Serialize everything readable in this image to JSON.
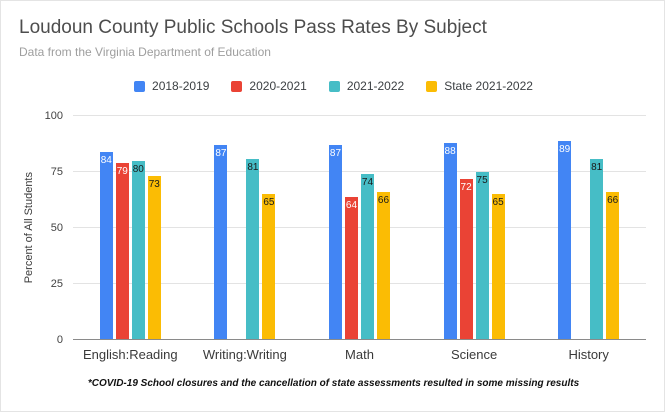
{
  "chart_data": {
    "type": "bar",
    "title": "Loudoun County Public Schools Pass Rates By Subject",
    "subtitle": "Data from the Virginia Department of Education",
    "ylabel": "Percent of All Students",
    "footnote": "*COVID-19 School closures and the cancellation of state assessments resulted in some missing results",
    "categories": [
      "English:Reading",
      "Writing:Writing",
      "Math",
      "Science",
      "History"
    ],
    "series": [
      {
        "name": "2018-2019",
        "color": "#4285F4",
        "label_color": "#ffffff",
        "values": [
          84,
          87,
          87,
          88,
          89
        ]
      },
      {
        "name": "2020-2021",
        "color": "#EA4335",
        "label_color": "#ffffff",
        "values": [
          79,
          null,
          64,
          72,
          null
        ]
      },
      {
        "name": "2021-2022",
        "color": "#46BDC6",
        "label_color": "#1a1a1a",
        "values": [
          80,
          81,
          74,
          75,
          81
        ]
      },
      {
        "name": "State 2021-2022",
        "color": "#FBBC04",
        "label_color": "#1a1a1a",
        "values": [
          73,
          65,
          66,
          65,
          66
        ]
      }
    ],
    "yticks": [
      0,
      25,
      50,
      75,
      100
    ],
    "ylim": [
      0,
      100
    ],
    "grid": true,
    "legend_position": "top"
  }
}
